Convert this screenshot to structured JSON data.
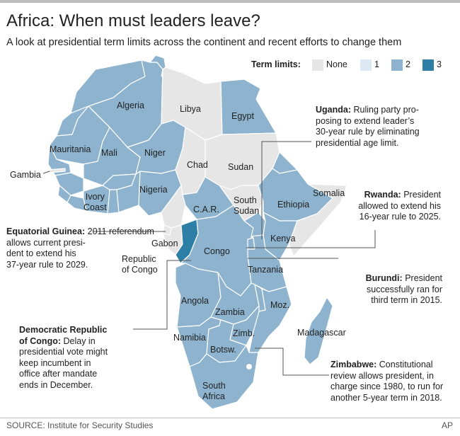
{
  "header": {
    "title": "Africa: When must leaders leave?",
    "subtitle": "A look at presidential term limits across the continent and recent efforts to change them"
  },
  "legend": {
    "title": "Term limits:",
    "items": [
      {
        "label": "None",
        "color": "#e6e6e6"
      },
      {
        "label": "1",
        "color": "#dce9f2"
      },
      {
        "label": "2",
        "color": "#8db3cf"
      },
      {
        "label": "3",
        "color": "#2d7fa6"
      }
    ]
  },
  "colors": {
    "none": "#e6e6e6",
    "one": "#dce9f2",
    "two": "#8db3cf",
    "three": "#2d7fa6",
    "border": "#ffffff",
    "leader": "#555555"
  },
  "countries": [
    {
      "key": "algeria",
      "label": "Algeria",
      "term_limits": 2
    },
    {
      "key": "libya",
      "label": "Libya",
      "term_limits": 0
    },
    {
      "key": "egypt",
      "label": "Egypt",
      "term_limits": 2
    },
    {
      "key": "mauritania",
      "label": "Mauritania",
      "term_limits": 2
    },
    {
      "key": "mali",
      "label": "Mali",
      "term_limits": 2
    },
    {
      "key": "niger",
      "label": "Niger",
      "term_limits": 2
    },
    {
      "key": "gambia",
      "label": "Gambia",
      "term_limits": 0
    },
    {
      "key": "chad",
      "label": "Chad",
      "term_limits": 0
    },
    {
      "key": "sudan",
      "label": "Sudan",
      "term_limits": 0
    },
    {
      "key": "ivory_coast",
      "label": "Ivory\nCoast",
      "term_limits": 2
    },
    {
      "key": "nigeria",
      "label": "Nigeria",
      "term_limits": 2
    },
    {
      "key": "car",
      "label": "C.A.R.",
      "term_limits": 2
    },
    {
      "key": "south_sudan",
      "label": "South\nSudan",
      "term_limits": 0
    },
    {
      "key": "ethiopia",
      "label": "Ethiopia",
      "term_limits": 2
    },
    {
      "key": "somalia",
      "label": "Somalia",
      "term_limits": 0
    },
    {
      "key": "gabon",
      "label": "Gabon",
      "term_limits": 0
    },
    {
      "key": "republic_of_congo",
      "label": "Republic\nof Congo",
      "term_limits": 3
    },
    {
      "key": "congo_drc",
      "label": "Congo",
      "term_limits": 2
    },
    {
      "key": "kenya",
      "label": "Kenya",
      "term_limits": 2
    },
    {
      "key": "tanzania",
      "label": "Tanzania",
      "term_limits": 2
    },
    {
      "key": "angola",
      "label": "Angola",
      "term_limits": 2
    },
    {
      "key": "zambia",
      "label": "Zambia",
      "term_limits": 2
    },
    {
      "key": "mozambique",
      "label": "Moz.",
      "term_limits": 2
    },
    {
      "key": "madagascar",
      "label": "Madagascar",
      "term_limits": 2
    },
    {
      "key": "namibia",
      "label": "Namibia",
      "term_limits": 2
    },
    {
      "key": "zimbabwe",
      "label": "Zimb.",
      "term_limits": 2
    },
    {
      "key": "botswana",
      "label": "Botsw.",
      "term_limits": 2
    },
    {
      "key": "south_africa",
      "label": "South\nAfrica",
      "term_limits": 2
    }
  ],
  "notes": {
    "uganda": {
      "head": "Uganda:",
      "body": "Ruling party pro-\nposing to extend leader’s\n30-year rule by eliminating\npresidential age limit."
    },
    "rwanda": {
      "head": "Rwanda:",
      "body": "President\nallowed to extend his\n16-year rule to 2025."
    },
    "burundi": {
      "head": "Burundi:",
      "body": "President\nsuccessfully ran for\nthird term in 2015."
    },
    "zimbabwe": {
      "head": "Zimbabwe:",
      "body": "Constitutional\nreview allows president, in\ncharge since 1980, to run for\nanother 5-year term in 2018."
    },
    "eq_guinea": {
      "head": "Equatorial Guinea:",
      "body": "2011 referendum\nallows current presi-\ndent to extend his\n37-year rule to 2029."
    },
    "drc": {
      "head": "Democratic Republic\nof Congo:",
      "body": "Delay in\npresidential vote might\nkeep incumbent in\noffice after mandate\nends in December."
    }
  },
  "footer": {
    "source": "SOURCE: Institute for Security Studies",
    "credit": "AP"
  }
}
